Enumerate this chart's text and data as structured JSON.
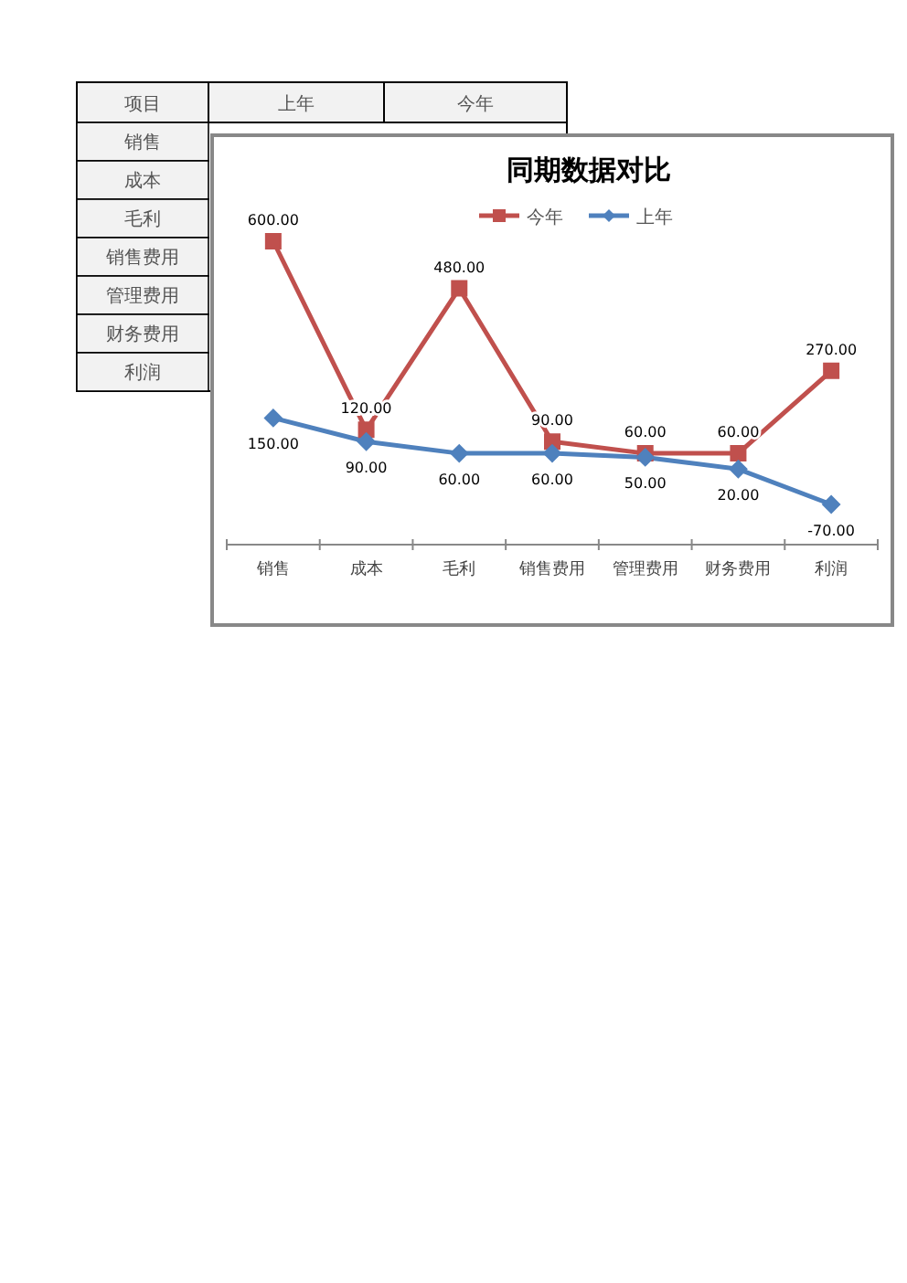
{
  "chart_data": [
    {
      "type": "other",
      "categories": [
        "项目",
        "上年",
        "今年"
      ],
      "y_categories": [
        "销售",
        "成本",
        "毛利",
        "销售费用",
        "管理费用",
        "财务费用",
        "利润"
      ]
    },
    {
      "type": "line",
      "title": "同期数据对比",
      "categories": [
        "销售",
        "成本",
        "毛利",
        "销售费用",
        "管理费用",
        "财务费用",
        "利润"
      ],
      "series": [
        {
          "name": "今年",
          "color": "#c0504d",
          "marker": "square",
          "values": [
            600,
            120,
            480,
            90,
            60,
            60,
            270
          ],
          "value_labels": [
            "600.00",
            "120.00",
            "480.00",
            "90.00",
            "60.00",
            "60.00",
            "270.00"
          ]
        },
        {
          "name": "上年",
          "color": "#4f81bd",
          "marker": "diamond",
          "values": [
            150,
            90,
            60,
            60,
            50,
            20,
            -70
          ],
          "value_labels": [
            "150.00",
            "90.00",
            "60.00",
            "60.00",
            "50.00",
            "20.00",
            "-70.00"
          ]
        }
      ],
      "legend": "top"
    }
  ]
}
